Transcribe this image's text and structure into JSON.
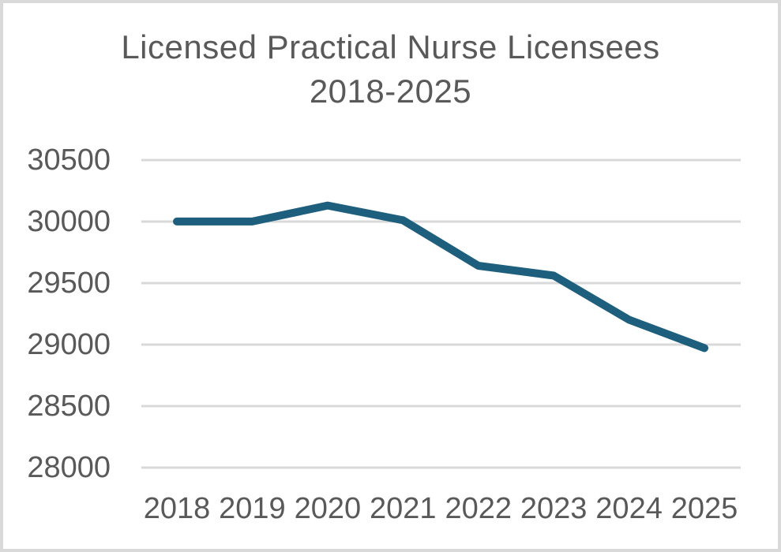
{
  "window": {
    "background": "#ffffff",
    "border_color": "#d9d9d9"
  },
  "chart_data": {
    "type": "line",
    "title": "Licensed Practical Nurse Licensees",
    "subtitle": "2018-2025",
    "categories": [
      "2018",
      "2019",
      "2020",
      "2021",
      "2022",
      "2023",
      "2024",
      "2025"
    ],
    "series": [
      {
        "name": "Licensed Practical Nurse Licensees",
        "values": [
          30000,
          30000,
          30130,
          30010,
          29640,
          29560,
          29200,
          28970
        ]
      }
    ],
    "xlabel": "",
    "ylabel": "",
    "ylim": [
      28000,
      30500
    ],
    "yticks": [
      30500,
      30000,
      29500,
      29000,
      28500,
      28000
    ],
    "grid": true,
    "legend": false,
    "line_color": "#1F5F7E",
    "line_width": 10,
    "gridline_color": "#d9d9d9",
    "text_color": "#595959"
  }
}
